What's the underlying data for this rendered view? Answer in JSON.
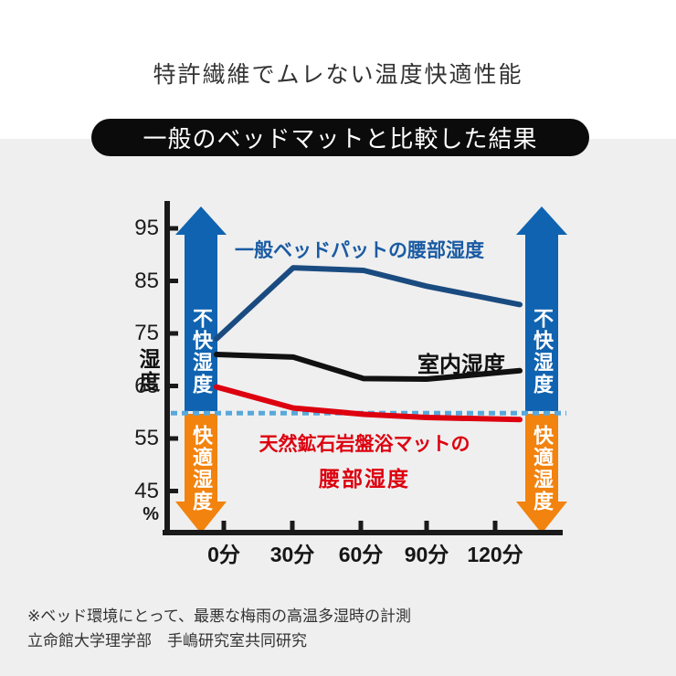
{
  "title": "特許繊維でムレない温度快適性能",
  "badge": {
    "label": "一般のベッドマットと比較した結果"
  },
  "colors": {
    "panel_bg": "#efefef",
    "badge_bg": "#0b0b0b",
    "axis": "#1a1a1a",
    "arrow_up_blue": "#1063b0",
    "arrow_down_orange": "#f2830e",
    "reference_dotted": "#58a8da",
    "series_general_pad": "#1a4b80",
    "series_general_pad_label": "#1a5ba3",
    "series_room": "#111111",
    "series_mineral_mat": "#dd000f"
  },
  "chart_data": {
    "type": "line",
    "title": "一般のベッドマットと比較した結果",
    "categories": [
      "0分",
      "30分",
      "60分",
      "90分",
      "120分"
    ],
    "ylabel": "湿度",
    "y_unit": "%",
    "yticks": [
      "95",
      "85",
      "75",
      "65",
      "55",
      "45"
    ],
    "ylim": [
      40,
      100
    ],
    "grid": false,
    "legend_position": "inline-annotations",
    "series": [
      {
        "name": "一般ベッドパットの腰部湿度",
        "color": "#1a4b80",
        "values": [
          74,
          87.5,
          87,
          84,
          80.5
        ]
      },
      {
        "name": "室内湿度",
        "color": "#111111",
        "values": [
          71,
          70.5,
          66.4,
          66.3,
          67.9
        ]
      },
      {
        "name": "天然鉱石岩盤浴マットの腰部湿度",
        "label_lines": [
          "天然鉱石岩盤浴マットの",
          "腰部湿度"
        ],
        "color": "#dd000f",
        "values": [
          64.8,
          60.8,
          59.6,
          59,
          58.6
        ]
      }
    ],
    "reference_line": {
      "value": 60,
      "style": "dotted",
      "color": "#58a8da"
    },
    "zones": {
      "upper": "不快湿度",
      "lower": "快適湿度"
    }
  },
  "footnote": {
    "line1": "※ベッド環境にとって、最悪な梅雨の高温多湿時の計測",
    "line2": "立命館大学理学部　手嶋研究室共同研究"
  }
}
